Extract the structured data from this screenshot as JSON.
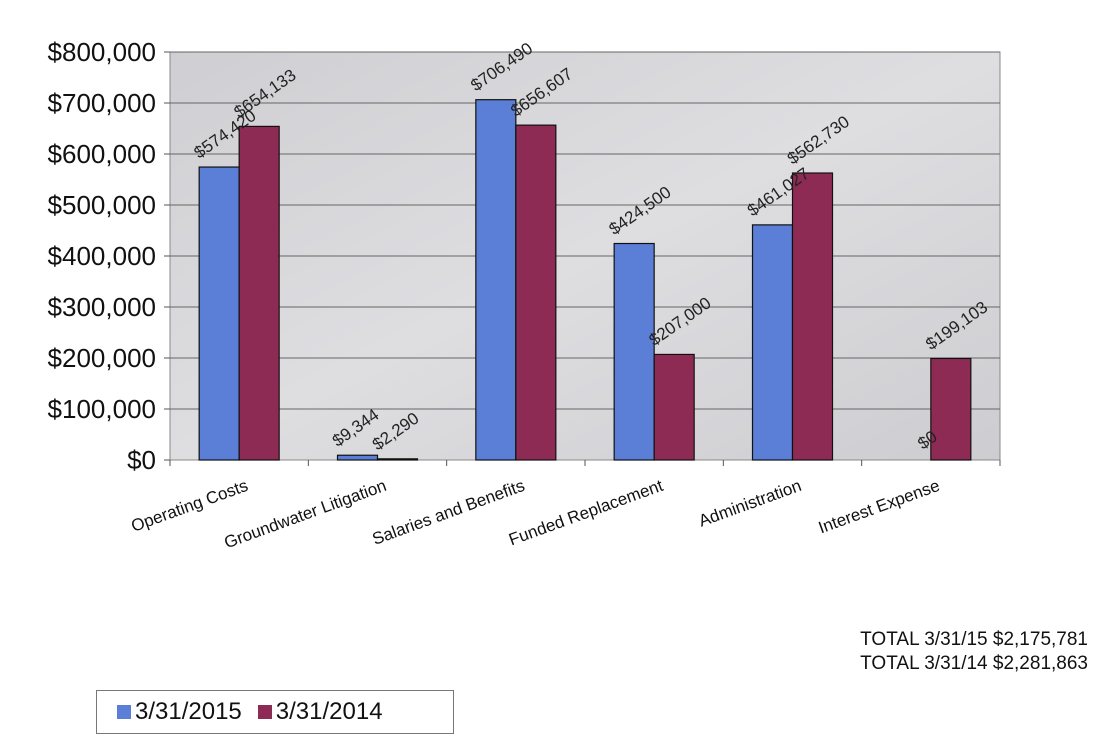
{
  "chart_data": {
    "type": "bar",
    "categories": [
      "Operating Costs",
      "Groundwater Litigation",
      "Salaries and Benefits",
      "Funded Replacement",
      "Administration",
      "Interest Expense"
    ],
    "series": [
      {
        "name": "3/31/2015",
        "color": "#5b7fd6",
        "values": [
          574420,
          9344,
          706490,
          424500,
          461027,
          0
        ],
        "labels": [
          "$574,420",
          "$9,344",
          "$706,490",
          "$424,500",
          "$461,027",
          ""
        ]
      },
      {
        "name": "3/31/2014",
        "color": "#8e2b55",
        "values": [
          654133,
          2290,
          656607,
          207000,
          562730,
          199103
        ],
        "labels": [
          "$654,133",
          "$2,290",
          "$656,607",
          "$207,000",
          "$562,730",
          "$199,103"
        ]
      }
    ],
    "extra_labels": [
      "$0"
    ],
    "ylim": [
      0,
      800000
    ],
    "yticks": [
      "$0",
      "$100,000",
      "$200,000",
      "$300,000",
      "$400,000",
      "$500,000",
      "$600,000",
      "$700,000",
      "$800,000"
    ],
    "grid": true,
    "legend_position": "bottom-left",
    "totals": [
      "TOTAL 3/31/15 $2,175,781",
      "TOTAL 3/31/14 $2,281,863"
    ]
  }
}
